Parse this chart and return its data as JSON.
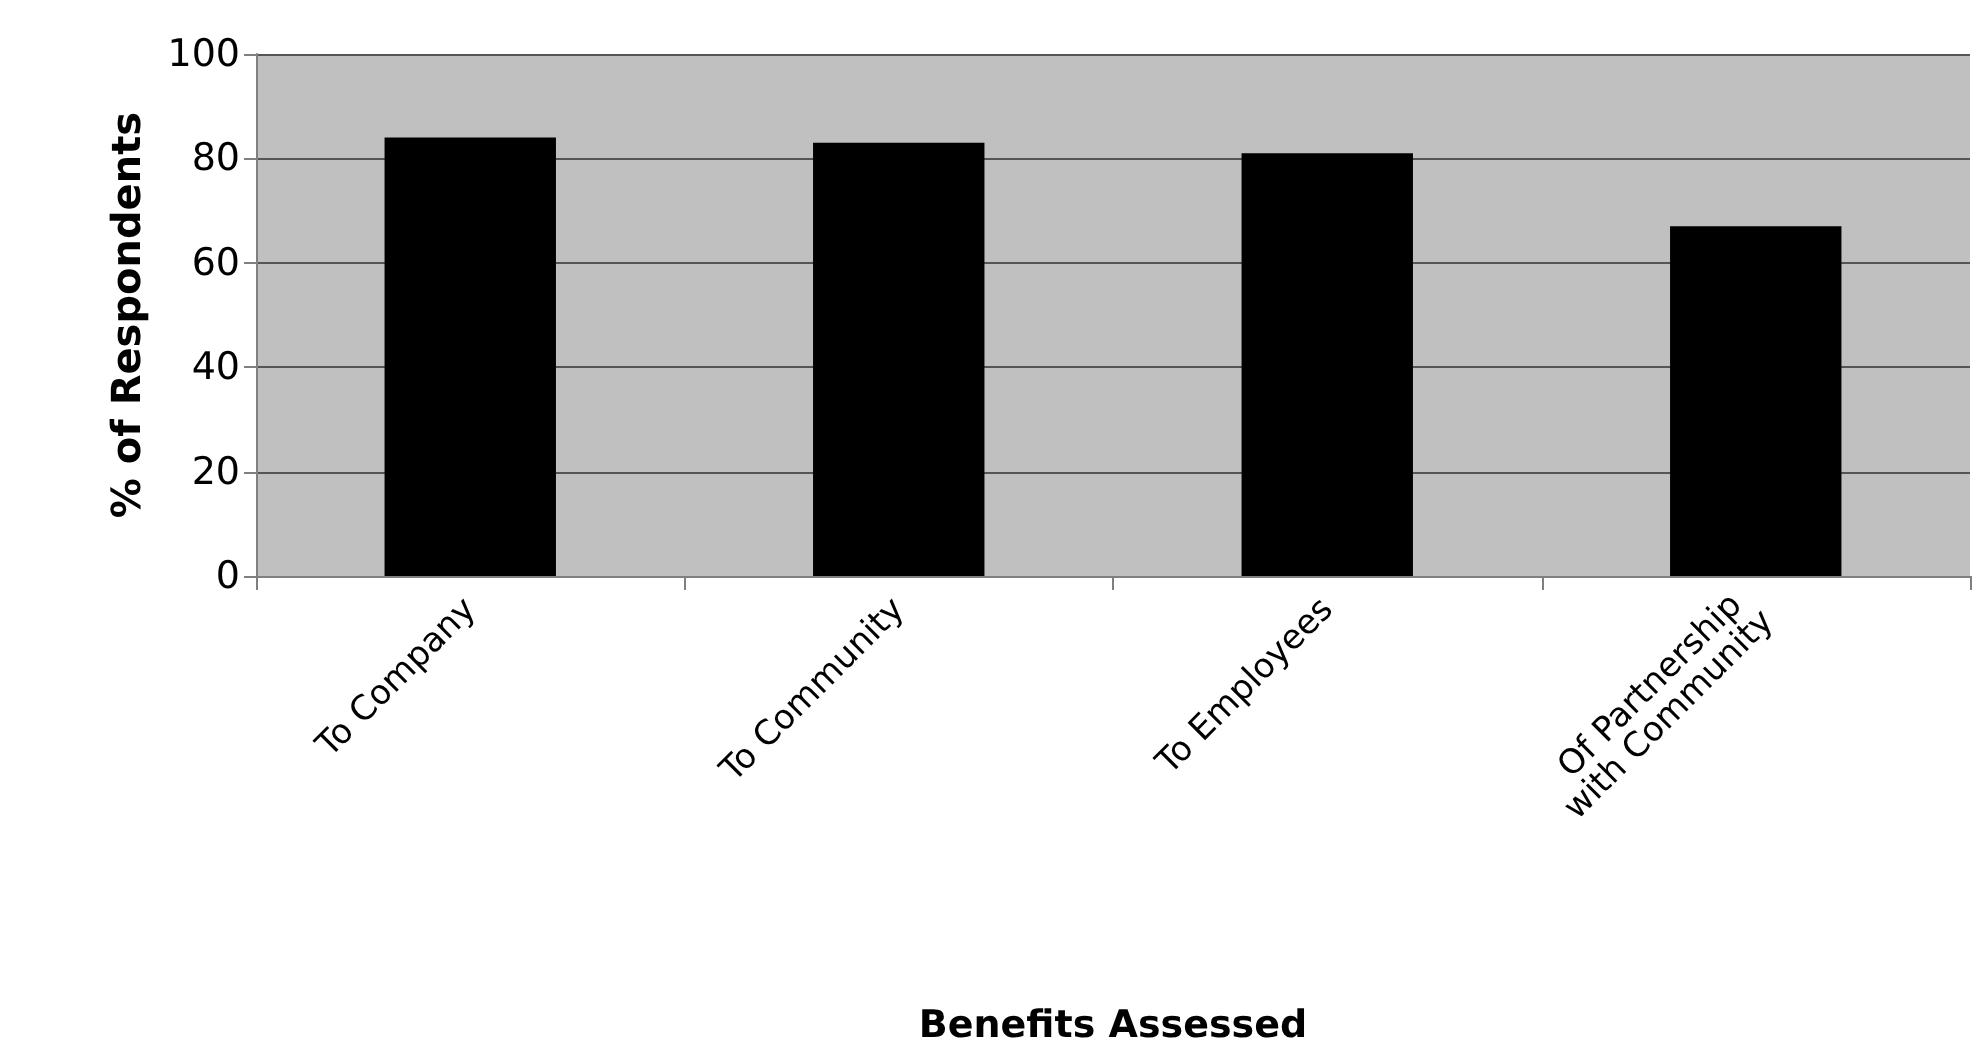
{
  "chart_data": {
    "type": "bar",
    "xlabel": "Benefits Assessed",
    "ylabel": "% of Respondents",
    "categories": [
      "To Company",
      "To Community",
      "To Employees",
      "Of Partnership with Community"
    ],
    "values": [
      84,
      83,
      81,
      67
    ],
    "color": "#000000",
    "ylim": [
      0,
      100
    ],
    "yticks": [
      0,
      20,
      40,
      60,
      80,
      100
    ],
    "grid": "y"
  }
}
